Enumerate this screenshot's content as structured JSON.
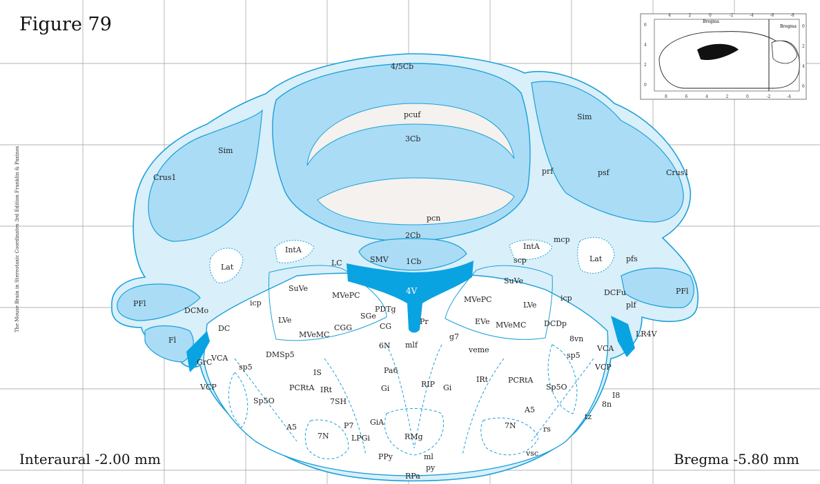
{
  "figure": {
    "title": "Figure 79",
    "interaural": "Interaural -2.00 mm",
    "bregma": "Bregma -5.80 mm",
    "side_credit": "The Mouse Brain in Stereotaxic Coordinates 3rd Edition  Franklin & Paxinos"
  },
  "colors": {
    "outline": "#1aa0d8",
    "fill_light": "#d9effa",
    "fill_mid": "#aadcf6",
    "fill_ventricle": "#0aa3e2",
    "fill_white": "#f4f1ee",
    "grid": "#9a9a9a"
  },
  "inset": {
    "top_ticks": [
      "4",
      "2",
      "0",
      "-2",
      "-4",
      "-6",
      "-8"
    ],
    "bottom_ticks": [
      "8",
      "6",
      "4",
      "2",
      "0",
      "-2",
      "-4"
    ],
    "left_ticks": [
      "6",
      "4",
      "2",
      "0"
    ],
    "right_ticks": [
      "0",
      "2",
      "4",
      "6"
    ],
    "label_top": "Bregma",
    "label_right": "Bregma"
  },
  "labels": {
    "cb45": "4/5Cb",
    "pcuf": "pcuf",
    "cb3": "3Cb",
    "sim_l": "Sim",
    "sim_r": "Sim",
    "crus1_l": "Crus1",
    "crus1_r": "Crus1",
    "prf": "prf",
    "psf": "psf",
    "pcn": "pcn",
    "cb2": "2Cb",
    "mcp": "mcp",
    "cb1": "1Cb",
    "smv": "SMV",
    "intA_l": "IntA",
    "intA_r": "IntA",
    "lc": "LC",
    "scp": "scp",
    "lat_l": "Lat",
    "lat_r": "Lat",
    "pfs": "pfs",
    "suve_l": "SuVe",
    "suve_r": "SuVe",
    "v4": "4V",
    "mvepc_l": "MVePC",
    "mvepc_r": "MVePC",
    "icp_l": "icp",
    "icp_r": "icp",
    "pfl_l": "PFl",
    "pfl_r": "PFl",
    "dcfu": "DCFu",
    "plf": "plf",
    "pdtg": "PDTg",
    "lve_r": "LVe",
    "dcmo": "DCMo",
    "lve_l": "LVe",
    "sge": "SGe",
    "pr": "Pr",
    "eve": "EVe",
    "mvemc_l": "MVeMC",
    "mvemc_r": "MVeMC",
    "dcdp": "DCDp",
    "dc": "DC",
    "cgg": "CGG",
    "cg": "CG",
    "g7": "g7",
    "lr4v": "LR4V",
    "fl": "Fl",
    "n6": "6N",
    "mlf": "mlf",
    "n8vn": "8vn",
    "veme": "veme",
    "vca_r": "VCA",
    "dmsp5": "DMSp5",
    "sp5_r": "sp5",
    "grc": "GrC",
    "vca_l": "VCA",
    "sp5_l": "sp5",
    "pa6": "Pa6",
    "vcp_r": "VCP",
    "is": "IS",
    "gi_l": "Gi",
    "rip": "RIP",
    "gi_r": "Gi",
    "irt_r": "IRt",
    "pcrta_l": "PCRtA",
    "pcrta_r": "PCRtA",
    "irt_l": "IRt",
    "vcp_l": "VCP",
    "sp5o_r": "Sp5O",
    "i8": "I8",
    "sp5o_l": "Sp5O",
    "n8": "8n",
    "sh7": "7SH",
    "a5_r": "A5",
    "tz": "tz",
    "gia": "GiA",
    "a5_l": "A5",
    "p7": "P7",
    "n7_r": "7N",
    "rs": "rs",
    "n7_l": "7N",
    "lpgi": "LPGi",
    "rmg": "RMg",
    "vsc": "vsc",
    "ml": "ml",
    "ppy": "PPy",
    "py": "py",
    "rpa": "RPa"
  }
}
